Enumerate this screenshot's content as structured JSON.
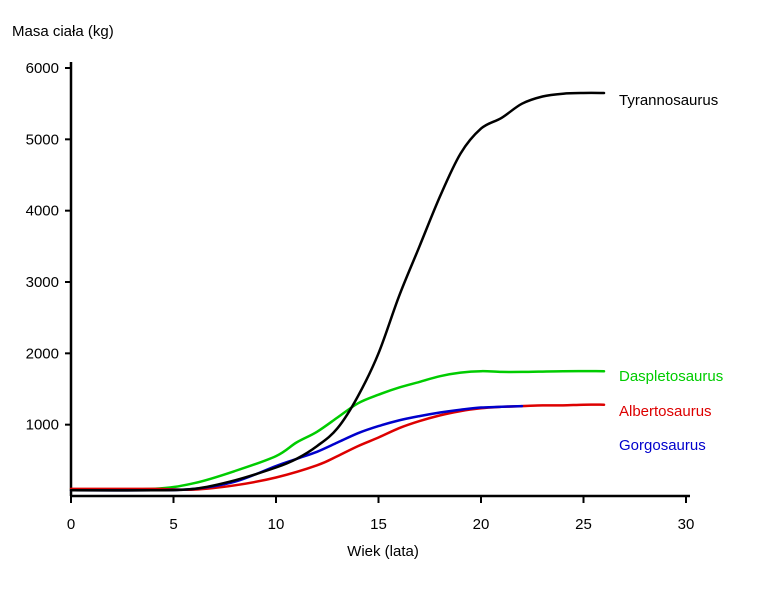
{
  "chart_data": {
    "type": "line",
    "ylabel": "Masa ciała (kg)",
    "xlabel": "Wiek (lata)",
    "xlim": [
      0,
      30
    ],
    "ylim": [
      0,
      6000
    ],
    "x_ticks": [
      "0",
      "5",
      "10",
      "15",
      "20",
      "25",
      "30"
    ],
    "y_ticks": [
      "1000",
      "2000",
      "3000",
      "4000",
      "5000",
      "6000"
    ],
    "grid": false,
    "legend": "labels at line ends",
    "series": [
      {
        "name": "Tyrannosaurus",
        "color": "#000000",
        "x": [
          0,
          4,
          6,
          8,
          10,
          11,
          12,
          13,
          14,
          15,
          16,
          17,
          18,
          19,
          20,
          21,
          22,
          23,
          24,
          25,
          26
        ],
        "y": [
          80,
          80,
          100,
          220,
          400,
          520,
          700,
          950,
          1400,
          2000,
          2800,
          3500,
          4200,
          4800,
          5150,
          5300,
          5500,
          5600,
          5640,
          5650,
          5650
        ]
      },
      {
        "name": "Daspletosaurus",
        "color": "#00cc00",
        "x": [
          0,
          4,
          6,
          8,
          10,
          11,
          12,
          13,
          14,
          15,
          16,
          17,
          18,
          19,
          20,
          21,
          22,
          24,
          26
        ],
        "y": [
          90,
          100,
          180,
          350,
          560,
          750,
          900,
          1100,
          1300,
          1420,
          1520,
          1600,
          1680,
          1730,
          1750,
          1740,
          1740,
          1750,
          1750
        ]
      },
      {
        "name": "Albertosaurus",
        "color": "#dd0000",
        "x": [
          0,
          4,
          6,
          8,
          10,
          12,
          13,
          14,
          15,
          16,
          17,
          18,
          19,
          20,
          21,
          22,
          23,
          24,
          25,
          26
        ],
        "y": [
          100,
          100,
          90,
          150,
          260,
          430,
          560,
          700,
          820,
          950,
          1050,
          1130,
          1190,
          1230,
          1250,
          1260,
          1270,
          1270,
          1280,
          1280
        ]
      },
      {
        "name": "Gorgosaurus",
        "color": "#0000cc",
        "x": [
          0,
          4,
          6,
          8,
          10,
          11,
          12,
          13,
          14,
          15,
          16,
          17,
          18,
          19,
          20,
          21,
          22
        ],
        "y": [
          80,
          80,
          100,
          200,
          420,
          520,
          620,
          750,
          880,
          980,
          1060,
          1120,
          1170,
          1210,
          1240,
          1250,
          1260
        ]
      }
    ]
  }
}
